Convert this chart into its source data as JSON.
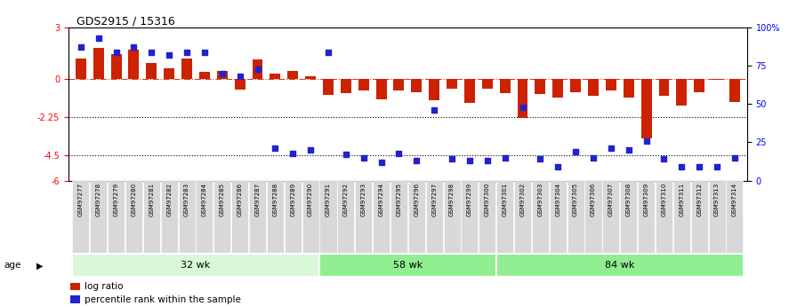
{
  "title": "GDS2915 / 15316",
  "samples": [
    "GSM97277",
    "GSM97278",
    "GSM97279",
    "GSM97280",
    "GSM97281",
    "GSM97282",
    "GSM97283",
    "GSM97284",
    "GSM97285",
    "GSM97286",
    "GSM97287",
    "GSM97288",
    "GSM97289",
    "GSM97290",
    "GSM97291",
    "GSM97292",
    "GSM97293",
    "GSM97294",
    "GSM97295",
    "GSM97296",
    "GSM97297",
    "GSM97298",
    "GSM97299",
    "GSM97300",
    "GSM97301",
    "GSM97302",
    "GSM97303",
    "GSM97304",
    "GSM97305",
    "GSM97306",
    "GSM97307",
    "GSM97308",
    "GSM97309",
    "GSM97310",
    "GSM97311",
    "GSM97312",
    "GSM97313",
    "GSM97314"
  ],
  "log_ratio": [
    1.2,
    1.8,
    1.45,
    1.7,
    0.9,
    0.6,
    1.2,
    0.4,
    0.45,
    -0.65,
    1.15,
    0.28,
    0.45,
    0.15,
    -0.95,
    -0.85,
    -0.7,
    -1.2,
    -0.7,
    -0.8,
    -1.3,
    -0.6,
    -1.45,
    -0.6,
    -0.85,
    -2.3,
    -0.9,
    -1.1,
    -0.8,
    -1.0,
    -0.7,
    -1.1,
    -3.5,
    -1.0,
    -1.6,
    -0.8,
    -0.08,
    -1.4
  ],
  "percentile_rank": [
    87,
    93,
    84,
    87,
    84,
    82,
    84,
    84,
    70,
    68,
    73,
    21,
    18,
    20,
    84,
    17,
    15,
    12,
    18,
    13,
    46,
    14,
    13,
    13,
    15,
    48,
    14,
    9,
    19,
    15,
    21,
    20,
    26,
    14,
    9,
    9,
    9,
    15
  ],
  "groups": [
    {
      "label": "32 wk",
      "start": 0,
      "end": 14
    },
    {
      "label": "58 wk",
      "start": 14,
      "end": 24
    },
    {
      "label": "84 wk",
      "start": 24,
      "end": 38
    }
  ],
  "group_bg_colors": [
    "#e8fce8",
    "#b8f0b8",
    "#b8f0b8"
  ],
  "bar_color": "#CC2200",
  "dot_color": "#2222CC",
  "ylim": [
    -6,
    3
  ],
  "yticks_left": [
    3,
    0,
    -2.25,
    -4.5,
    -6
  ],
  "yticks_right": [
    100,
    75,
    50,
    25,
    0
  ],
  "dotted_lines": [
    -2.25,
    -4.5
  ],
  "background_color": "#ffffff",
  "legend_log_ratio": "log ratio",
  "legend_percentile": "percentile rank within the sample",
  "age_label": "age",
  "tick_bg_color": "#d8d8d8",
  "group_colors": [
    "#d8f8d8",
    "#90ee90",
    "#90ee90"
  ]
}
